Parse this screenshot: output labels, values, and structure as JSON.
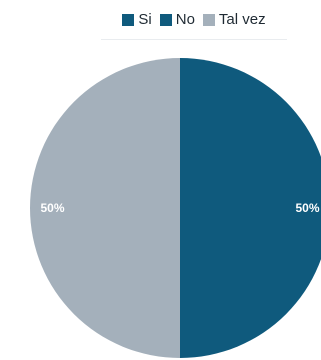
{
  "chart_data": {
    "type": "pie",
    "categories": [
      "Si",
      "No",
      "Tal vez"
    ],
    "values": [
      0,
      50,
      50
    ],
    "data_labels": [
      "",
      "50%",
      "50%"
    ],
    "colors": [
      "#0f5a7d",
      "#0f5a7d",
      "#a4b0bb"
    ],
    "legend_position": "top-right",
    "title": ""
  }
}
